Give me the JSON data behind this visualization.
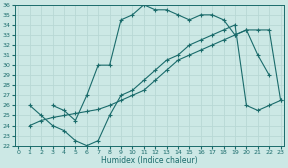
{
  "xlabel": "Humidex (Indice chaleur)",
  "bg_color": "#cce8e5",
  "line_color": "#1a6b6b",
  "grid_color": "#b8d8d5",
  "xlim": [
    -0.3,
    23.3
  ],
  "ylim": [
    22,
    36
  ],
  "yticks": [
    22,
    23,
    24,
    25,
    26,
    27,
    28,
    29,
    30,
    31,
    32,
    33,
    34,
    35,
    36
  ],
  "xticks": [
    0,
    1,
    2,
    3,
    4,
    5,
    6,
    7,
    8,
    9,
    10,
    11,
    12,
    13,
    14,
    15,
    16,
    17,
    18,
    19,
    20,
    21,
    22,
    23
  ],
  "curve1_x": [
    3,
    4,
    5,
    6,
    7,
    8,
    9,
    10,
    11,
    12,
    13,
    14,
    15,
    16,
    17,
    18,
    19,
    20,
    21,
    22
  ],
  "curve1_y": [
    26.0,
    25.5,
    24.5,
    27.0,
    30.0,
    30.0,
    34.5,
    35.0,
    36.0,
    35.5,
    35.5,
    35.0,
    34.5,
    35.0,
    35.0,
    34.5,
    33.0,
    33.5,
    31.0,
    29.0
  ],
  "curve2_x": [
    1,
    2,
    3,
    4,
    5,
    6,
    7,
    8,
    9,
    10,
    11,
    12,
    13,
    14,
    15,
    16,
    17,
    18,
    19,
    20,
    21,
    22,
    23
  ],
  "curve2_y": [
    26.0,
    25.0,
    24.0,
    23.5,
    22.5,
    22.0,
    22.5,
    25.0,
    27.0,
    27.5,
    28.5,
    29.5,
    30.5,
    31.0,
    32.0,
    32.5,
    33.0,
    33.5,
    34.0,
    26.0,
    25.5,
    26.0,
    26.5
  ],
  "curve3_x": [
    1,
    2,
    3,
    4,
    5,
    6,
    7,
    8,
    9,
    10,
    11,
    12,
    13,
    14,
    15,
    16,
    17,
    18,
    19,
    20,
    21,
    22,
    23
  ],
  "curve3_y": [
    24.0,
    24.5,
    24.8,
    25.0,
    25.2,
    25.4,
    25.6,
    26.0,
    26.5,
    27.0,
    27.5,
    28.5,
    29.5,
    30.5,
    31.0,
    31.5,
    32.0,
    32.5,
    33.0,
    33.5,
    33.5,
    33.5,
    26.5
  ]
}
